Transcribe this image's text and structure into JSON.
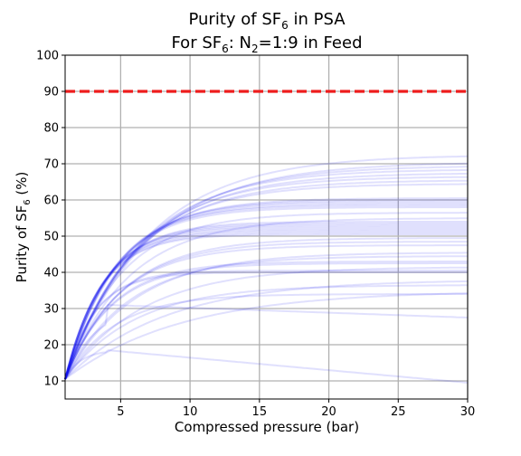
{
  "chart_data": {
    "type": "line",
    "title": {
      "line1_prefix": "Purity of SF",
      "line1_sub": "6",
      "line1_suffix": " in PSA",
      "line2_prefix": "For SF",
      "line2_sub1": "6",
      "line2_mid1": ": N",
      "line2_sub2": "2",
      "line2_suffix": "=1:9 in Feed"
    },
    "xlabel": "Compressed pressure (bar)",
    "ylabel": {
      "prefix": "Purity of SF",
      "sub": "6",
      "suffix": " (%)"
    },
    "xlim": [
      1,
      30
    ],
    "ylim": [
      5,
      100
    ],
    "xticks": [
      5,
      10,
      15,
      20,
      25,
      30
    ],
    "yticks": [
      10,
      20,
      30,
      40,
      50,
      60,
      70,
      80,
      90,
      100
    ],
    "grid": true,
    "start_point": [
      1,
      10.5
    ],
    "reference_line": {
      "y": 90,
      "style": "dashed",
      "color": "#ee1c1c"
    },
    "series_color": "#1010ee",
    "series": [
      {
        "plateau": 72.5,
        "rate": 0.17
      },
      {
        "plateau": 70.5,
        "rate": 0.17
      },
      {
        "plateau": 69.5,
        "rate": 0.18
      },
      {
        "plateau": 68.5,
        "rate": 0.19
      },
      {
        "plateau": 67.5,
        "rate": 0.19
      },
      {
        "plateau": 66.5,
        "rate": 0.2
      },
      {
        "plateau": 65.5,
        "rate": 0.2
      },
      {
        "plateau": 64.5,
        "rate": 0.21
      },
      {
        "plateau": 60.5,
        "rate": 0.26
      },
      {
        "plateau": 60.0,
        "rate": 0.27
      },
      {
        "plateau": 59.5,
        "rate": 0.28
      },
      {
        "plateau": 59.0,
        "rate": 0.28
      },
      {
        "plateau": 58.5,
        "rate": 0.29
      },
      {
        "plateau": 58.0,
        "rate": 0.29
      },
      {
        "plateau": 56.5,
        "rate": 0.25
      },
      {
        "plateau": 55.0,
        "rate": 0.22
      },
      {
        "plateau": 54.0,
        "rate": 0.34
      },
      {
        "plateau": 53.5,
        "rate": 0.35
      },
      {
        "plateau": 53.0,
        "rate": 0.36
      },
      {
        "plateau": 52.5,
        "rate": 0.37
      },
      {
        "plateau": 52.0,
        "rate": 0.37
      },
      {
        "plateau": 51.5,
        "rate": 0.38
      },
      {
        "plateau": 51.0,
        "rate": 0.38
      },
      {
        "plateau": 50.5,
        "rate": 0.39
      },
      {
        "plateau": 49.5,
        "rate": 0.24
      },
      {
        "plateau": 48.5,
        "rate": 0.25
      },
      {
        "plateau": 47.5,
        "rate": 0.26
      },
      {
        "plateau": 45.5,
        "rate": 0.2
      },
      {
        "plateau": 44.5,
        "rate": 0.22
      },
      {
        "plateau": 43.0,
        "rate": 0.3
      },
      {
        "plateau": 42.5,
        "rate": 0.3
      },
      {
        "plateau": 41.5,
        "rate": 0.18
      },
      {
        "plateau": 40.5,
        "rate": 0.45
      },
      {
        "plateau": 40.0,
        "rate": 0.46
      },
      {
        "plateau": 38.0,
        "rate": 0.14
      },
      {
        "plateau": 36.5,
        "rate": 0.2
      },
      {
        "plateau": 35.0,
        "rate": 0.12
      },
      {
        "plateau": 34.0,
        "rate": 0.28
      },
      {
        "plateau": 37.0,
        "rate": 0.3,
        "peak": 31.0,
        "end": 27.5
      },
      {
        "plateau": 20.0,
        "rate": 0.6,
        "peak": 18.5,
        "end": 9.5
      }
    ]
  }
}
